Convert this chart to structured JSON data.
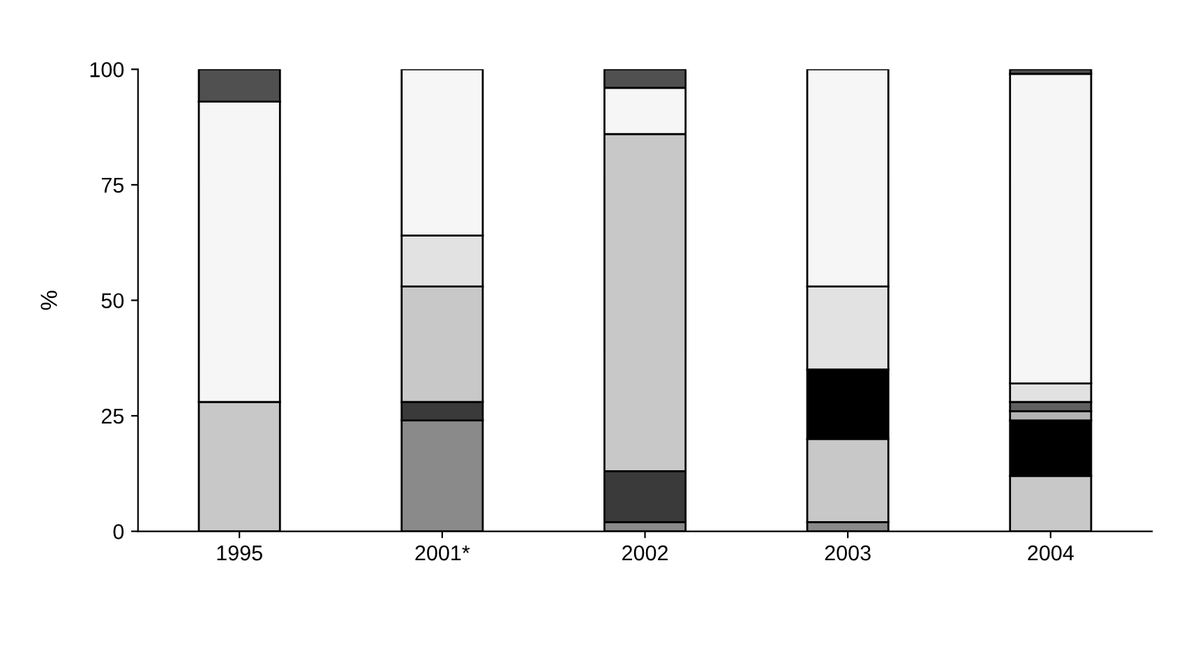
{
  "chart_data": {
    "type": "bar",
    "stacked": true,
    "ylabel": "%",
    "categories": [
      "1995",
      "2001*",
      "2002",
      "2003",
      "2004"
    ],
    "series": [
      {
        "color": "#8a8a8a",
        "values": [
          null,
          24,
          2,
          2,
          null
        ]
      },
      {
        "color": "#3a3a3a",
        "values": [
          null,
          4,
          11,
          null,
          null
        ]
      },
      {
        "color": "#c8c8c8",
        "values": [
          28,
          25,
          73,
          18,
          12
        ]
      },
      {
        "color": "#000000",
        "values": [
          null,
          null,
          null,
          15,
          12
        ]
      },
      {
        "color": "#b4b4b4",
        "values": [
          null,
          null,
          null,
          null,
          2
        ]
      },
      {
        "color": "#606060",
        "values": [
          null,
          null,
          null,
          null,
          2
        ]
      },
      {
        "color": "#e2e2e2",
        "values": [
          null,
          11,
          null,
          18,
          4
        ]
      },
      {
        "color": "#f6f6f6",
        "values": [
          65,
          36,
          10,
          47,
          67
        ]
      },
      {
        "color": "#505050",
        "values": [
          7,
          null,
          4,
          null,
          1
        ]
      }
    ],
    "ylim": [
      0,
      100
    ],
    "yticks": [
      0,
      25,
      50,
      75,
      100
    ],
    "grid": false,
    "legend": false
  }
}
